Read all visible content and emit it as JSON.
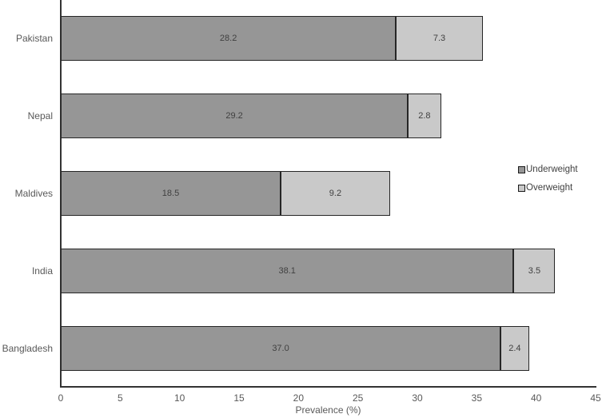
{
  "chart_data": {
    "type": "bar",
    "orientation": "horizontal",
    "stacked": true,
    "title": "",
    "xlabel": "Prevalence (%)",
    "ylabel": "",
    "xlim": [
      0,
      45
    ],
    "xticks": [
      0,
      5,
      10,
      15,
      20,
      25,
      30,
      35,
      40,
      45
    ],
    "grid": false,
    "legend_position": "right",
    "categories": [
      "Pakistan",
      "Nepal",
      "Maldives",
      "India",
      "Bangladesh"
    ],
    "series": [
      {
        "name": "Underweight",
        "color": "#969696",
        "values": [
          28.2,
          29.2,
          18.5,
          38.1,
          37.0
        ],
        "labels": [
          "28.2",
          "29.2",
          "18.5",
          "38.1",
          "37.0"
        ]
      },
      {
        "name": "Overweight",
        "color": "#c9c9c9",
        "values": [
          7.3,
          2.8,
          9.2,
          3.5,
          2.4
        ],
        "labels": [
          "7.3",
          "2.8",
          "9.2",
          "3.5",
          "2.4"
        ]
      }
    ],
    "colors": {
      "axis": "#333333",
      "tick_label": "#595959",
      "category_label": "#595959",
      "value_label": "#404040",
      "bar_border": "#262626",
      "legend_text": "#404040"
    }
  }
}
